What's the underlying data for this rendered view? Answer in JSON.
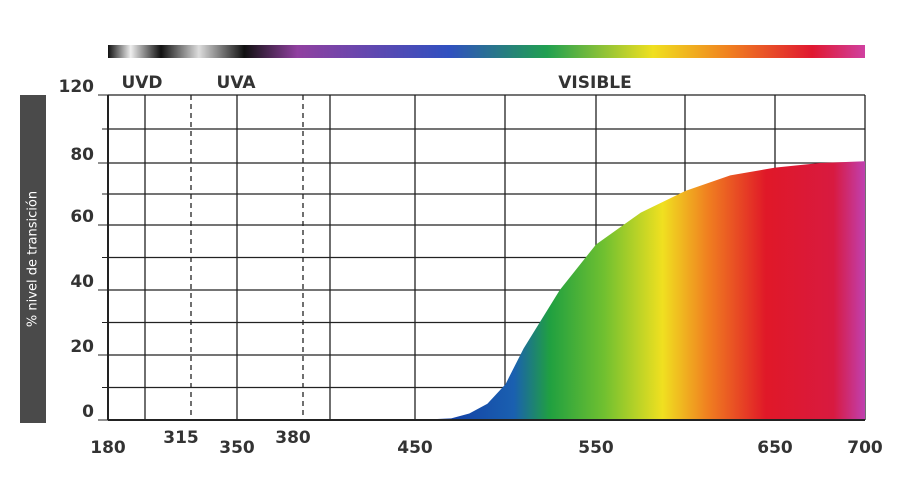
{
  "chart_data": {
    "type": "area",
    "y_label": "% nivel de transición",
    "regions": [
      "UVD",
      "UVA",
      "VISIBLE"
    ],
    "x": [
      450,
      470,
      480,
      490,
      500,
      510,
      520,
      530,
      550,
      575,
      600,
      625,
      650,
      675,
      700
    ],
    "values": [
      0,
      0.5,
      2,
      5,
      11,
      22,
      31,
      40,
      54,
      64,
      71,
      76,
      78.5,
      80,
      81
    ],
    "xlim": [
      180,
      700
    ],
    "xticks": [
      180,
      315,
      350,
      380,
      450,
      550,
      650,
      700
    ],
    "highlight_xticks": [
      315,
      380
    ],
    "highlight_color": "#e0201b",
    "ylim": [
      0,
      120
    ],
    "yticks": [
      0,
      20,
      40,
      60,
      80,
      120
    ],
    "grid": true
  }
}
